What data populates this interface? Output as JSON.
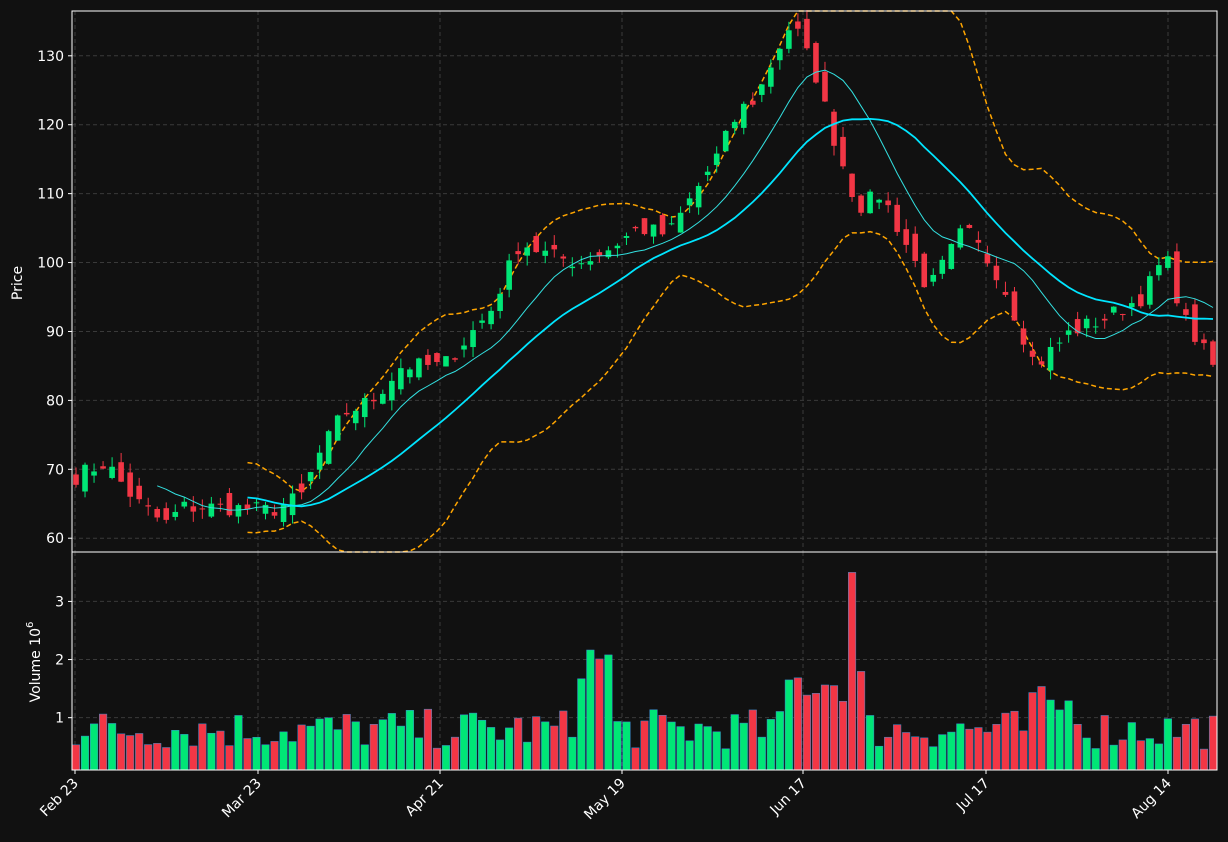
{
  "chart_data": {
    "type": "candlestick",
    "price_panel": {
      "ylabel": "Price",
      "ylim": [
        58,
        136.5
      ],
      "yticks": [
        "60",
        "70",
        "80",
        "90",
        "100",
        "110",
        "120",
        "130"
      ],
      "candles_sample": [
        {
          "date": "Feb 23",
          "open": 70.4,
          "close": 68.4,
          "high": 71.0,
          "low": 68.0
        },
        {
          "date": "Mar 23",
          "open": 66.5,
          "close": 65.0,
          "high": 67.0,
          "low": 64.5
        },
        {
          "date": "Apr 21",
          "open": 84.0,
          "close": 85.5,
          "high": 86.0,
          "low": 83.5
        },
        {
          "date": "May 19",
          "open": 97.5,
          "close": 96.5,
          "high": 99.0,
          "low": 95.0
        },
        {
          "date": "Jun 17",
          "open": 113.8,
          "close": 127.0,
          "high": 128.0,
          "low": 113.5
        },
        {
          "date": "Jul 17",
          "open": 99.0,
          "close": 100.0,
          "high": 102.0,
          "low": 98.0
        },
        {
          "date": "Aug 14",
          "open": 94.2,
          "close": 92.0,
          "high": 95.5,
          "low": 91.0
        }
      ]
    },
    "volume_panel": {
      "ylabel": "Volume  10",
      "ylabel_exp": "6",
      "ylim": [
        0.1,
        3.85
      ],
      "yticks": [
        "1",
        "2",
        "3"
      ]
    },
    "xticks": [
      "Feb 23",
      "Mar 23",
      "Apr 21",
      "May 19",
      "Jun 17",
      "Jul 17",
      "Aug 14"
    ],
    "series": [
      {
        "name": "",
        "color": "#33e0e0",
        "style": "thin-solid"
      },
      {
        "name": "",
        "color": "#00e5ff",
        "style": "solid"
      },
      {
        "name": "",
        "color": "#ffa500",
        "style": "dashed"
      },
      {
        "name": "",
        "color": "#ffa500",
        "style": "dashed"
      }
    ],
    "up_color": "#00e676",
    "down_color": "#f23645",
    "grid": true,
    "legend": "none"
  }
}
